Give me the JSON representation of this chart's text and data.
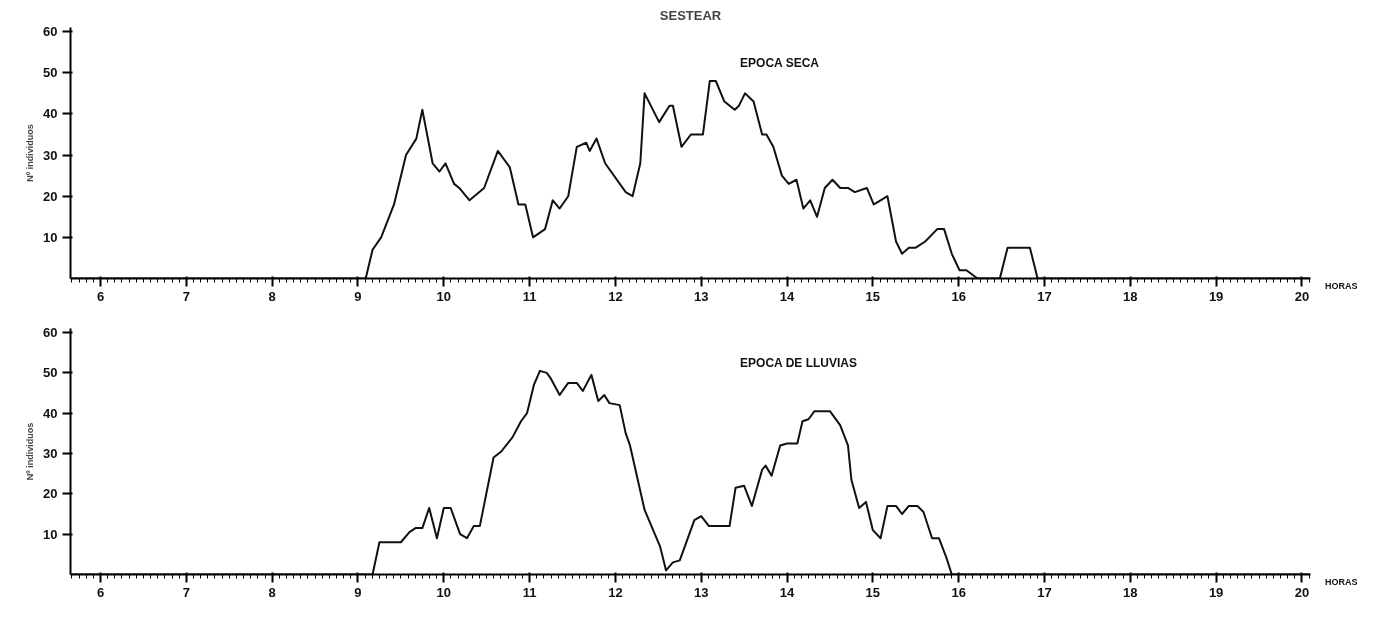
{
  "chart_data": [
    {
      "type": "line",
      "title": "SESTEAR",
      "ylabel": "Nº individuos",
      "xlabel": "HORAS",
      "annotations": [
        "EPOCA SECA"
      ],
      "xlim": [
        5.65,
        20.1
      ],
      "ylim": [
        0,
        61
      ],
      "xticks": [
        6,
        7,
        8,
        9,
        10,
        11,
        12,
        13,
        14,
        15,
        16,
        17,
        18,
        19,
        20
      ],
      "yticks": [
        10,
        20,
        30,
        40,
        50,
        60
      ],
      "grid": false,
      "series": [
        {
          "color": "#111111",
          "x": [
            5.65,
            9.09,
            9.17,
            9.27,
            9.42,
            9.56,
            9.68,
            9.75,
            9.87,
            9.95,
            10.02,
            10.12,
            10.18,
            10.3,
            10.47,
            10.63,
            10.77,
            10.87,
            10.95,
            11.04,
            11.18,
            11.27,
            11.35,
            11.45,
            11.55,
            11.66,
            11.7,
            11.78,
            11.88,
            12.12,
            12.2,
            12.29,
            12.34,
            12.51,
            12.63,
            12.67,
            12.77,
            12.88,
            12.96,
            13.02,
            13.1,
            13.17,
            13.27,
            13.39,
            13.44,
            13.51,
            13.61,
            13.71,
            13.76,
            13.84,
            13.94,
            14.02,
            14.11,
            14.19,
            14.27,
            14.35,
            14.44,
            14.53,
            14.62,
            14.71,
            14.79,
            14.93,
            15.01,
            15.09,
            15.17,
            15.27,
            15.34,
            15.42,
            15.5,
            15.61,
            15.75,
            15.83,
            15.92,
            16.01,
            16.09,
            16.22,
            16.48,
            16.57,
            16.83,
            16.92,
            20.1
          ],
          "values": [
            0,
            0,
            7,
            10,
            18,
            30,
            34,
            41,
            28,
            26,
            28,
            23,
            22,
            19,
            22,
            31,
            27,
            18,
            18,
            10,
            12,
            19,
            17,
            20,
            32,
            33,
            31,
            34,
            28,
            21,
            20,
            28,
            45,
            38,
            42,
            42,
            32,
            35,
            35,
            35,
            48,
            48,
            43,
            41,
            42,
            45,
            43,
            35,
            35,
            32,
            25,
            23,
            24,
            17,
            19,
            15,
            22,
            24,
            22,
            22,
            21,
            22,
            18,
            19,
            20,
            9,
            6,
            7.5,
            7.5,
            9,
            12,
            12,
            6,
            2,
            2,
            0,
            0,
            7.5,
            7.5,
            0,
            0
          ]
        }
      ]
    },
    {
      "type": "line",
      "ylabel": "Nº individuos",
      "xlabel": "HORAS",
      "annotations": [
        "EPOCA DE LLUVIAS"
      ],
      "xlim": [
        5.65,
        20.1
      ],
      "ylim": [
        0,
        61
      ],
      "xticks": [
        6,
        7,
        8,
        9,
        10,
        11,
        12,
        13,
        14,
        15,
        16,
        17,
        18,
        19,
        20
      ],
      "yticks": [
        10,
        20,
        30,
        40,
        50,
        60
      ],
      "grid": false,
      "series": [
        {
          "color": "#111111",
          "x": [
            5.65,
            9.17,
            9.25,
            9.5,
            9.6,
            9.67,
            9.75,
            9.83,
            9.92,
            10.0,
            10.08,
            10.19,
            10.27,
            10.35,
            10.42,
            10.58,
            10.67,
            10.8,
            10.9,
            10.97,
            11.05,
            11.12,
            11.2,
            11.25,
            11.35,
            11.45,
            11.55,
            11.62,
            11.72,
            11.8,
            11.87,
            11.93,
            12.05,
            12.12,
            12.17,
            12.34,
            12.52,
            12.59,
            12.67,
            12.75,
            12.92,
            13.0,
            13.09,
            13.33,
            13.4,
            13.5,
            13.59,
            13.71,
            13.75,
            13.82,
            13.92,
            14.0,
            14.12,
            14.18,
            14.25,
            14.32,
            14.5,
            14.62,
            14.71,
            14.75,
            14.84,
            14.92,
            15.0,
            15.09,
            15.17,
            15.27,
            15.34,
            15.42,
            15.52,
            15.59,
            15.69,
            15.77,
            15.86,
            15.92,
            20.1
          ],
          "values": [
            0,
            0,
            8,
            8,
            10.5,
            11.5,
            11.5,
            16.5,
            9,
            16.5,
            16.5,
            10,
            9,
            12,
            12,
            29,
            30.5,
            34,
            38,
            40,
            47,
            50.5,
            50,
            48.5,
            44.5,
            47.5,
            47.5,
            45.5,
            49.5,
            43,
            44.5,
            42.5,
            42,
            35,
            32,
            16,
            7,
            1,
            3,
            3.5,
            13.5,
            14.5,
            12,
            12,
            21.5,
            22,
            17,
            26,
            27,
            24.5,
            32,
            32.5,
            32.5,
            38,
            38.5,
            40.5,
            40.5,
            37,
            32,
            23.5,
            16.5,
            18,
            11,
            9,
            17,
            17,
            15,
            17,
            17,
            15.5,
            9,
            9,
            4,
            0,
            0
          ]
        }
      ]
    }
  ]
}
